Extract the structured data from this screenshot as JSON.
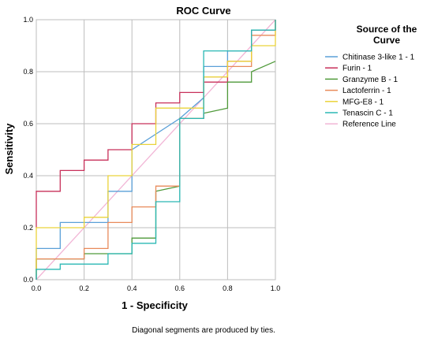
{
  "chart_data": {
    "type": "line",
    "title": "ROC Curve",
    "xlabel": "1 - Specificity",
    "ylabel": "Sensitivity",
    "xlim": [
      0,
      1
    ],
    "ylim": [
      0,
      1
    ],
    "x_ticks": [
      "0.0",
      "0.2",
      "0.4",
      "0.6",
      "0.8",
      "1.0"
    ],
    "y_ticks": [
      "0.0",
      "0.2",
      "0.4",
      "0.6",
      "0.8",
      "1.0"
    ],
    "grid": true,
    "legend_title_lines": [
      "Source of the",
      "Curve"
    ],
    "legend_position": "right",
    "footnote": "Diagonal segments are produced by ties.",
    "series": [
      {
        "name": "Chitinase 3-like 1 - 1",
        "color": "#5aa0d8",
        "points": [
          [
            0,
            0
          ],
          [
            0,
            0.12
          ],
          [
            0.1,
            0.12
          ],
          [
            0.1,
            0.22
          ],
          [
            0.3,
            0.22
          ],
          [
            0.3,
            0.34
          ],
          [
            0.4,
            0.34
          ],
          [
            0.4,
            0.5
          ],
          [
            0.6,
            0.62
          ],
          [
            0.7,
            0.7
          ],
          [
            0.7,
            0.82
          ],
          [
            0.8,
            0.82
          ],
          [
            0.8,
            0.88
          ],
          [
            0.9,
            0.88
          ],
          [
            0.9,
            0.96
          ],
          [
            1.0,
            0.96
          ],
          [
            1.0,
            1.0
          ]
        ]
      },
      {
        "name": "Furin - 1",
        "color": "#c8305a",
        "points": [
          [
            0,
            0.2
          ],
          [
            0,
            0.34
          ],
          [
            0.1,
            0.34
          ],
          [
            0.1,
            0.42
          ],
          [
            0.2,
            0.42
          ],
          [
            0.2,
            0.46
          ],
          [
            0.3,
            0.46
          ],
          [
            0.3,
            0.5
          ],
          [
            0.4,
            0.5
          ],
          [
            0.4,
            0.6
          ],
          [
            0.5,
            0.6
          ],
          [
            0.5,
            0.68
          ],
          [
            0.6,
            0.68
          ],
          [
            0.6,
            0.72
          ],
          [
            0.7,
            0.72
          ],
          [
            0.7,
            0.76
          ],
          [
            0.8,
            0.76
          ],
          [
            0.8,
            0.84
          ],
          [
            0.9,
            0.84
          ],
          [
            0.9,
            0.96
          ],
          [
            1.0,
            0.96
          ],
          [
            1.0,
            1.0
          ]
        ]
      },
      {
        "name": "Granzyme B - 1",
        "color": "#4f9a3a",
        "points": [
          [
            0,
            0
          ],
          [
            0,
            0.08
          ],
          [
            0.2,
            0.08
          ],
          [
            0.2,
            0.1
          ],
          [
            0.4,
            0.1
          ],
          [
            0.4,
            0.16
          ],
          [
            0.5,
            0.16
          ],
          [
            0.5,
            0.34
          ],
          [
            0.6,
            0.36
          ],
          [
            0.6,
            0.62
          ],
          [
            0.7,
            0.62
          ],
          [
            0.7,
            0.64
          ],
          [
            0.8,
            0.66
          ],
          [
            0.8,
            0.76
          ],
          [
            0.9,
            0.76
          ],
          [
            0.9,
            0.8
          ],
          [
            1.0,
            0.84
          ]
        ]
      },
      {
        "name": "Lactoferrin - 1",
        "color": "#e88a5a",
        "points": [
          [
            0,
            0
          ],
          [
            0,
            0.08
          ],
          [
            0.2,
            0.08
          ],
          [
            0.2,
            0.12
          ],
          [
            0.3,
            0.12
          ],
          [
            0.3,
            0.22
          ],
          [
            0.4,
            0.22
          ],
          [
            0.4,
            0.28
          ],
          [
            0.5,
            0.28
          ],
          [
            0.5,
            0.36
          ],
          [
            0.6,
            0.36
          ],
          [
            0.6,
            0.62
          ],
          [
            0.7,
            0.62
          ],
          [
            0.7,
            0.78
          ],
          [
            0.8,
            0.78
          ],
          [
            0.8,
            0.82
          ],
          [
            0.9,
            0.82
          ],
          [
            0.9,
            0.94
          ],
          [
            1.0,
            0.94
          ],
          [
            1.0,
            1.0
          ]
        ]
      },
      {
        "name": "MFG-E8 - 1",
        "color": "#ead33a",
        "points": [
          [
            0,
            0.02
          ],
          [
            0,
            0.2
          ],
          [
            0.2,
            0.2
          ],
          [
            0.2,
            0.24
          ],
          [
            0.3,
            0.24
          ],
          [
            0.3,
            0.4
          ],
          [
            0.4,
            0.4
          ],
          [
            0.4,
            0.52
          ],
          [
            0.5,
            0.52
          ],
          [
            0.5,
            0.66
          ],
          [
            0.7,
            0.66
          ],
          [
            0.7,
            0.78
          ],
          [
            0.8,
            0.78
          ],
          [
            0.8,
            0.84
          ],
          [
            0.9,
            0.84
          ],
          [
            0.9,
            0.9
          ],
          [
            1.0,
            0.9
          ],
          [
            1.0,
            1.0
          ]
        ]
      },
      {
        "name": "Tenascin C - 1",
        "color": "#2ab8b4",
        "points": [
          [
            0,
            0
          ],
          [
            0,
            0.04
          ],
          [
            0.1,
            0.04
          ],
          [
            0.1,
            0.06
          ],
          [
            0.3,
            0.06
          ],
          [
            0.3,
            0.1
          ],
          [
            0.4,
            0.1
          ],
          [
            0.4,
            0.14
          ],
          [
            0.5,
            0.14
          ],
          [
            0.5,
            0.3
          ],
          [
            0.6,
            0.3
          ],
          [
            0.6,
            0.62
          ],
          [
            0.7,
            0.62
          ],
          [
            0.7,
            0.88
          ],
          [
            0.9,
            0.88
          ],
          [
            0.9,
            0.96
          ],
          [
            1.0,
            0.96
          ],
          [
            1.0,
            1.0
          ]
        ]
      },
      {
        "name": "Reference Line",
        "color": "#f2b6d6",
        "points": [
          [
            0,
            0
          ],
          [
            1,
            1
          ]
        ]
      }
    ]
  }
}
